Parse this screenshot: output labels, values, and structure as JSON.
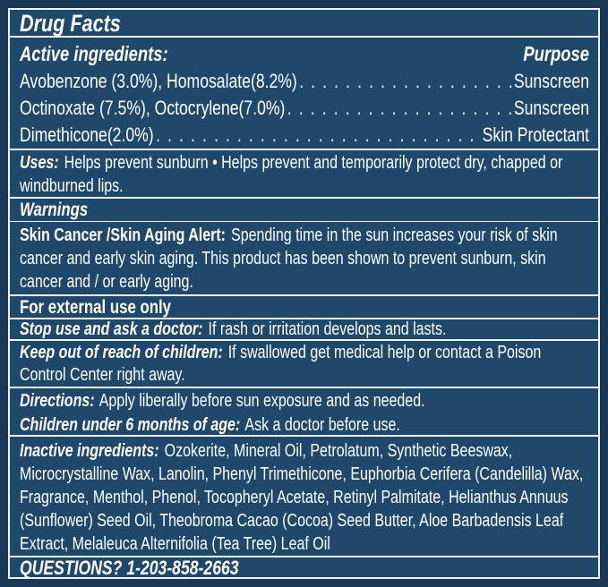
{
  "label": {
    "title": "Drug Facts",
    "active_ingredients": {
      "header": "Active ingredients:",
      "purpose_header": "Purpose",
      "rows": [
        {
          "ingredient": "Avobenzone (3.0%), Homosalate(8.2%)",
          "purpose": "Sunscreen"
        },
        {
          "ingredient": "Octinoxate (7.5%), Octocrylene(7.0%)",
          "purpose": "Sunscreen"
        },
        {
          "ingredient": "Dimethicone(2.0%)",
          "purpose": "Skin Protectant"
        }
      ]
    },
    "uses": {
      "lead": "Uses:",
      "text": "Helps prevent sunburn • Helps prevent and temporarily protect dry, chapped or windburned lips."
    },
    "warnings_header": "Warnings",
    "skin_alert": {
      "lead": "Skin Cancer /Skin Aging Alert:",
      "text": "Spending time in the sun increases your risk of skin cancer and early skin aging. This product has been shown to prevent sunburn, skin cancer and / or early aging."
    },
    "external_use": "For external use only",
    "stop_use": {
      "lead": "Stop use and ask a doctor:",
      "text": "If rash or irritation develops and lasts."
    },
    "keep_out": {
      "lead": "Keep out of reach of children:",
      "text": "If swallowed get medical help or contact a Poison Control Center right away."
    },
    "directions": {
      "lead": "Directions:",
      "text": "Apply liberally before sun exposure and as needed."
    },
    "children": {
      "lead": "Children under 6 months of age:",
      "text": "Ask a doctor before use."
    },
    "inactive": {
      "lead": "Inactive ingredients:",
      "text": "Ozokerite, Mineral Oil, Petrolatum, Synthetic Beeswax, Microcrystalline Wax, Lanolin, Phenyl Trimethicone, Euphorbia Cerifera (Candelilla) Wax, Fragrance, Menthol, Phenol, Tocopheryl Acetate, Retinyl Palmitate, Helianthus Annuus (Sunflower) Seed Oil, Theobroma Cacao (Cocoa) Seed Butter, Aloe Barbadensis Leaf Extract, Melaleuca Alternifolia (Tea Tree) Leaf Oil"
    },
    "questions": "QUESTIONS? 1-203-858-2663",
    "colors": {
      "panel_background": "#1f486a",
      "outer_border": "#193956",
      "rule": "#eef3f6",
      "text": "#ffffff"
    }
  }
}
